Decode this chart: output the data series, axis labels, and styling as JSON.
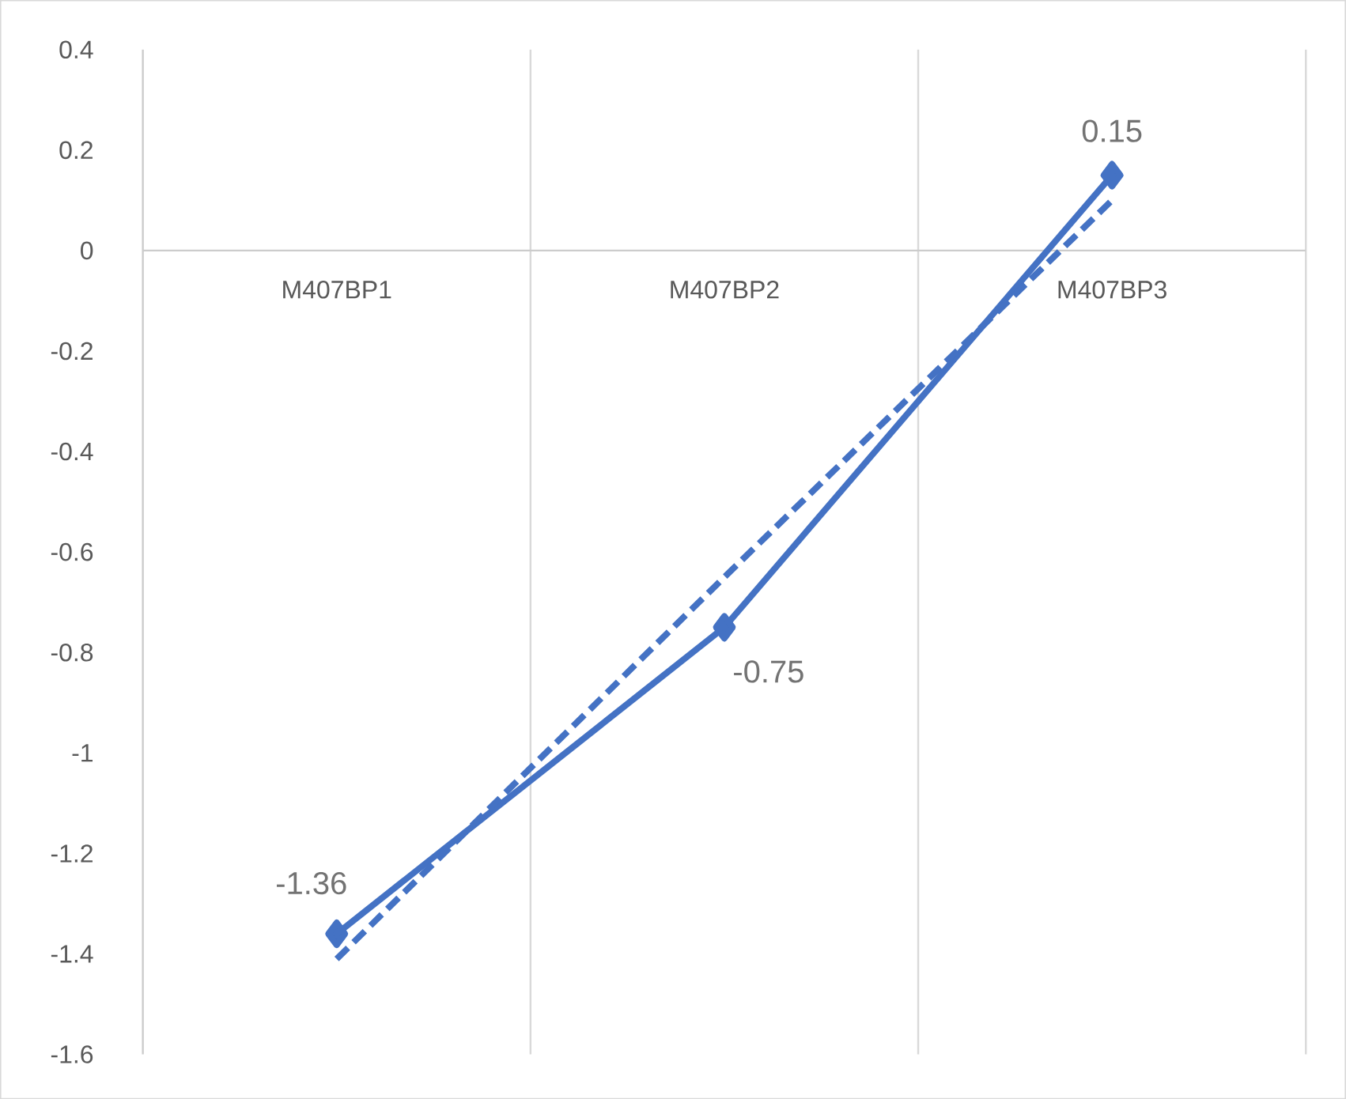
{
  "chart_data": {
    "type": "line",
    "categories": [
      "M407BP1",
      "M407BP2",
      "M407BP3"
    ],
    "series": [
      {
        "color": "#4472c4",
        "values": [
          -1.36,
          -0.75,
          0.15
        ],
        "value_labels": [
          "-1.36",
          "-0.75",
          "0.15"
        ],
        "marker": "diamond",
        "line_style": "solid"
      },
      {
        "color": "#4472c4",
        "values": [
          -1.41,
          -0.65,
          0.1
        ],
        "marker": "none",
        "line_style": "dashed"
      }
    ],
    "ylim": [
      -1.6,
      0.4
    ],
    "yticks": [
      -1.6,
      -1.4,
      -1.2,
      -1,
      -0.8,
      -0.6,
      -0.4,
      -0.2,
      0,
      0.2,
      0.4
    ],
    "grid": "x"
  }
}
